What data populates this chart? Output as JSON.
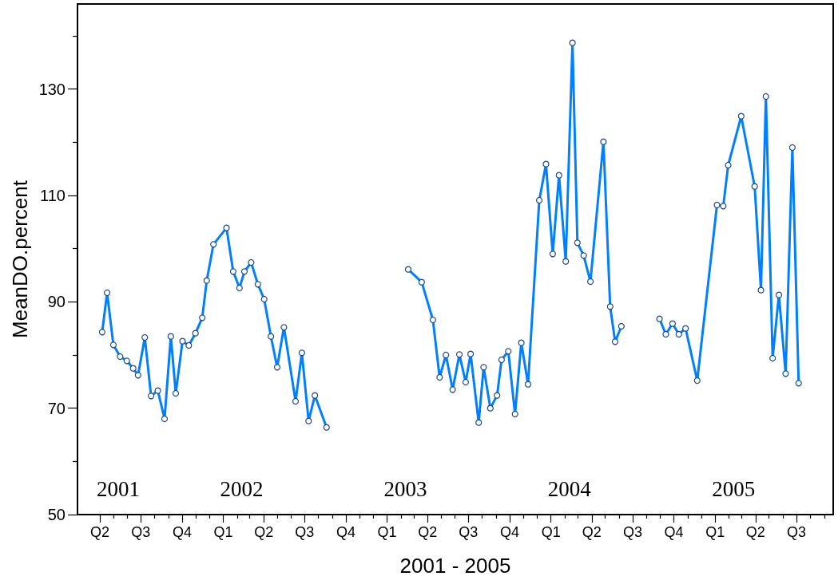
{
  "chart_data": {
    "type": "line",
    "xlabel": "2001 - 2005",
    "ylabel": "MeanDO.percent",
    "color": "#0080ff",
    "marker": "circle",
    "line_style": "solid",
    "xlim": [
      "2001-02-10",
      "2005-09-21"
    ],
    "ylim": [
      50,
      146
    ],
    "xticks": [
      {
        "value": "2001-04",
        "label": "Q2"
      },
      {
        "value": "2001-05",
        "label": null
      },
      {
        "value": "2001-06",
        "label": null
      },
      {
        "value": "2001-07",
        "label": "Q3"
      },
      {
        "value": "2001-08",
        "label": null
      },
      {
        "value": "2001-09",
        "label": null
      },
      {
        "value": "2001-10",
        "label": "Q4"
      },
      {
        "value": "2001-11",
        "label": null
      },
      {
        "value": "2001-12",
        "label": null
      },
      {
        "value": "2002-01",
        "label": "Q1"
      },
      {
        "value": "2002-02",
        "label": null
      },
      {
        "value": "2002-03",
        "label": null
      },
      {
        "value": "2002-04",
        "label": "Q2"
      },
      {
        "value": "2002-05",
        "label": null
      },
      {
        "value": "2002-06",
        "label": null
      },
      {
        "value": "2002-07",
        "label": "Q3"
      },
      {
        "value": "2002-08",
        "label": null
      },
      {
        "value": "2002-09",
        "label": null
      },
      {
        "value": "2002-10",
        "label": "Q4"
      },
      {
        "value": "2002-11",
        "label": null
      },
      {
        "value": "2002-12",
        "label": null
      },
      {
        "value": "2003-01",
        "label": "Q1"
      },
      {
        "value": "2003-02",
        "label": null
      },
      {
        "value": "2003-03",
        "label": null
      },
      {
        "value": "2003-04",
        "label": "Q2"
      },
      {
        "value": "2003-05",
        "label": null
      },
      {
        "value": "2003-06",
        "label": null
      },
      {
        "value": "2003-07",
        "label": "Q3"
      },
      {
        "value": "2003-08",
        "label": null
      },
      {
        "value": "2003-09",
        "label": null
      },
      {
        "value": "2003-10",
        "label": "Q4"
      },
      {
        "value": "2003-11",
        "label": null
      },
      {
        "value": "2003-12",
        "label": null
      },
      {
        "value": "2004-01",
        "label": "Q1"
      },
      {
        "value": "2004-02",
        "label": null
      },
      {
        "value": "2004-03",
        "label": null
      },
      {
        "value": "2004-04",
        "label": "Q2"
      },
      {
        "value": "2004-05",
        "label": null
      },
      {
        "value": "2004-06",
        "label": null
      },
      {
        "value": "2004-07",
        "label": "Q3"
      },
      {
        "value": "2004-08",
        "label": null
      },
      {
        "value": "2004-09",
        "label": null
      },
      {
        "value": "2004-10",
        "label": "Q4"
      },
      {
        "value": "2004-11",
        "label": null
      },
      {
        "value": "2004-12",
        "label": null
      },
      {
        "value": "2005-01",
        "label": "Q1"
      },
      {
        "value": "2005-02",
        "label": null
      },
      {
        "value": "2005-03",
        "label": null
      },
      {
        "value": "2005-04",
        "label": "Q2"
      },
      {
        "value": "2005-05",
        "label": null
      },
      {
        "value": "2005-06",
        "label": null
      },
      {
        "value": "2005-07",
        "label": "Q3"
      },
      {
        "value": "2005-08",
        "label": null
      },
      {
        "value": "2005-09",
        "label": null
      }
    ],
    "yticks": [
      50,
      {
        "value": 60,
        "label": null
      },
      70,
      {
        "value": 80,
        "label": null
      },
      90,
      {
        "value": 100,
        "label": null
      },
      110,
      {
        "value": 120,
        "label": null
      },
      130,
      {
        "value": 140,
        "label": null
      }
    ],
    "x": [
      "2001-04-06",
      "2001-04-17",
      "2001-05-01",
      "2001-05-16",
      "2001-05-31",
      "2001-06-14",
      "2001-06-25",
      "2001-07-10",
      "2001-07-24",
      "2001-08-08",
      "2001-08-23",
      "2001-09-06",
      "2001-09-17",
      "2001-10-02",
      "2001-10-16",
      "2001-10-31",
      "2001-11-15",
      "2001-11-25",
      "2001-12-10",
      "2002-01-08",
      "2002-01-23",
      "2002-02-06",
      "2002-02-17",
      "2002-03-04",
      "2002-03-19",
      "2002-04-02",
      "2002-04-17",
      "2002-05-01",
      "2002-05-16",
      "2002-06-11",
      "2002-06-25",
      "2002-07-10",
      "2002-07-24",
      "2002-08-19",
      "2002-11-15",
      "2003-02-17",
      "2003-03-19",
      "2003-04-13",
      "2003-04-28",
      "2003-05-12",
      "2003-05-27",
      "2003-06-11",
      "2003-06-25",
      "2003-07-06",
      "2003-07-24",
      "2003-08-04",
      "2003-08-19",
      "2003-09-03",
      "2003-09-13",
      "2003-09-28",
      "2003-10-13",
      "2003-10-27",
      "2003-11-11",
      "2003-12-06",
      "2003-12-21",
      "2004-01-05",
      "2004-01-19",
      "2004-02-03",
      "2004-02-18",
      "2004-02-29",
      "2004-03-14",
      "2004-03-29",
      "2004-04-27",
      "2004-05-12",
      "2004-05-23",
      "2004-06-06",
      "2004-07-20",
      "2004-08-30",
      "2004-09-13",
      "2004-09-28",
      "2004-10-12",
      "2004-10-27",
      "2004-11-22",
      "2005-01-05",
      "2005-01-19",
      "2005-01-30",
      "2005-02-28",
      "2005-03-30",
      "2005-04-13",
      "2005-04-24",
      "2005-05-09",
      "2005-05-23",
      "2005-06-07",
      "2005-06-22",
      "2005-07-06"
    ],
    "values": [
      84.3,
      91.7,
      81.9,
      79.7,
      78.9,
      77.5,
      76.2,
      83.3,
      72.3,
      73.3,
      68.0,
      83.5,
      72.8,
      82.6,
      81.8,
      84.1,
      87.0,
      94.0,
      100.8,
      103.9,
      95.7,
      92.6,
      95.7,
      97.4,
      93.3,
      90.5,
      83.5,
      77.7,
      85.2,
      71.3,
      80.4,
      67.6,
      72.4,
      66.4,
      null,
      96.1,
      93.7,
      86.6,
      75.8,
      80.0,
      73.5,
      80.1,
      74.9,
      80.2,
      67.3,
      77.7,
      70.0,
      72.4,
      79.1,
      80.7,
      68.9,
      82.3,
      74.5,
      109.1,
      115.9,
      99.0,
      113.8,
      97.6,
      138.7,
      101.1,
      98.7,
      93.8,
      120.1,
      89.1,
      82.5,
      85.4,
      null,
      86.8,
      83.9,
      85.9,
      83.9,
      85.0,
      75.2,
      108.2,
      108.0,
      115.7,
      124.9,
      111.7,
      92.2,
      128.6,
      79.4,
      91.3,
      76.5,
      119.0,
      74.7
    ],
    "annotations": [
      "2001",
      "2002",
      "2003",
      "2004",
      "2005"
    ]
  }
}
